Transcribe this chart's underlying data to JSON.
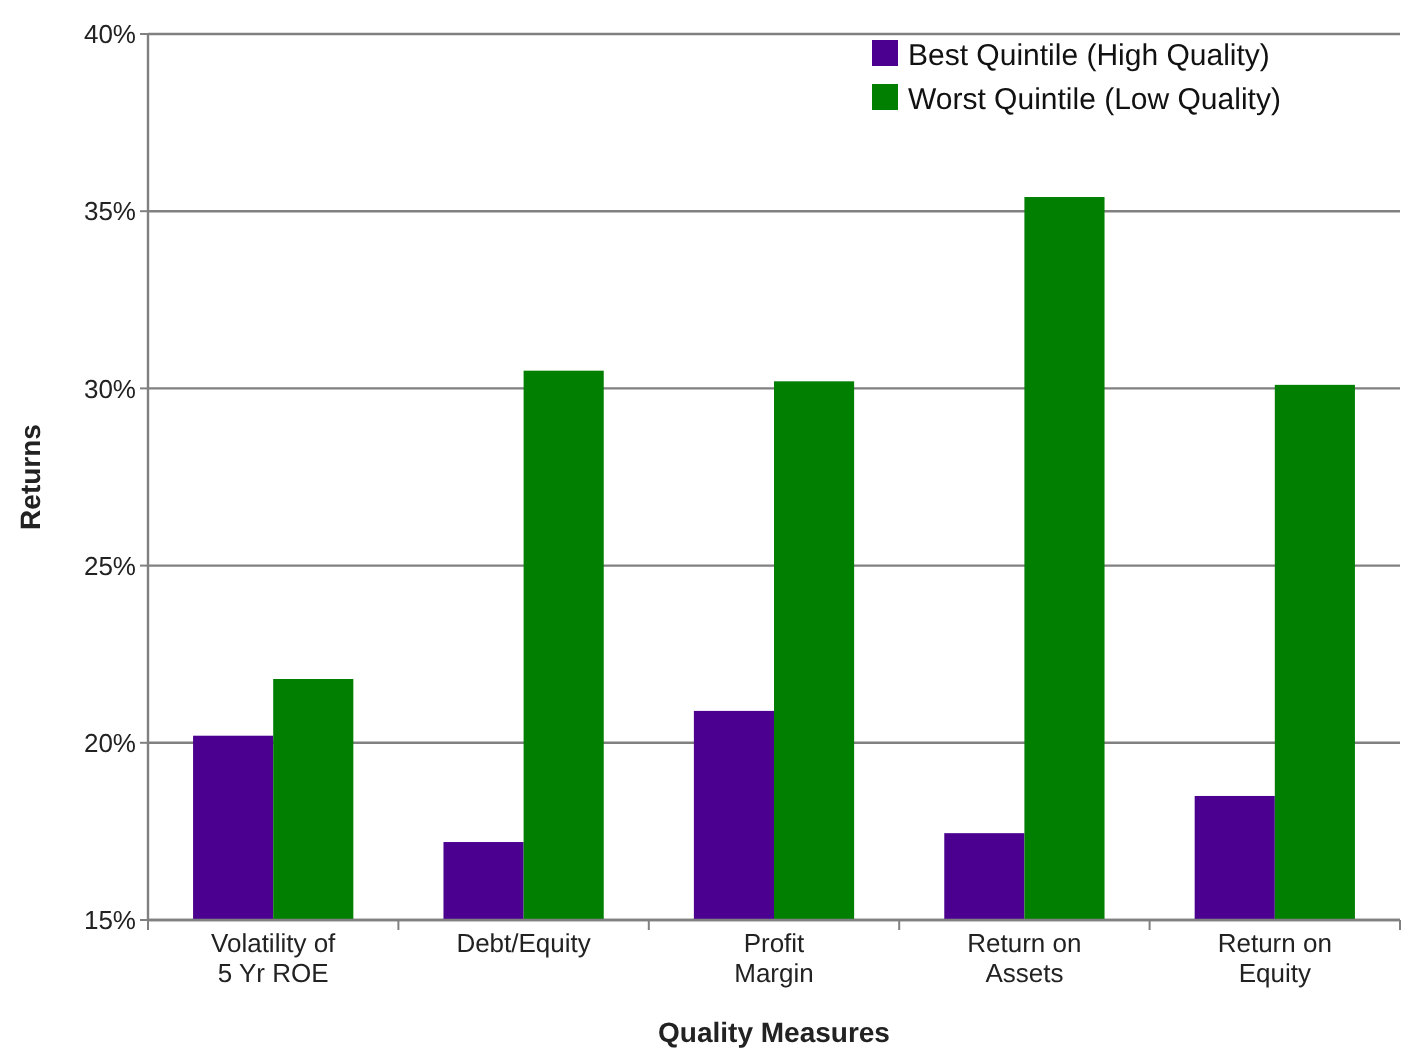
{
  "chart_data": {
    "type": "bar",
    "xlabel": "Quality Measures",
    "ylabel": "Returns",
    "categories": [
      "Volatility of\n5 Yr ROE",
      "Debt/Equity",
      "Profit\nMargin",
      "Return on\nAssets",
      "Return on\nEquity"
    ],
    "series": [
      {
        "name": "Best Quintile (High Quality)",
        "color": "#4b0090",
        "values": [
          20.2,
          17.2,
          20.9,
          17.45,
          18.5
        ]
      },
      {
        "name": "Worst Quintile (Low Quality)",
        "color": "#007f00",
        "values": [
          21.8,
          30.5,
          30.2,
          35.4,
          30.1
        ]
      }
    ],
    "ylim": [
      15,
      40
    ],
    "yticks": [
      {
        "value": 15,
        "label": "15%"
      },
      {
        "value": 20,
        "label": "20%"
      },
      {
        "value": 25,
        "label": "25%"
      },
      {
        "value": 30,
        "label": "30%"
      },
      {
        "value": 35,
        "label": "35%"
      },
      {
        "value": 40,
        "label": "40%"
      }
    ],
    "grid": "y",
    "legend": "top right"
  }
}
